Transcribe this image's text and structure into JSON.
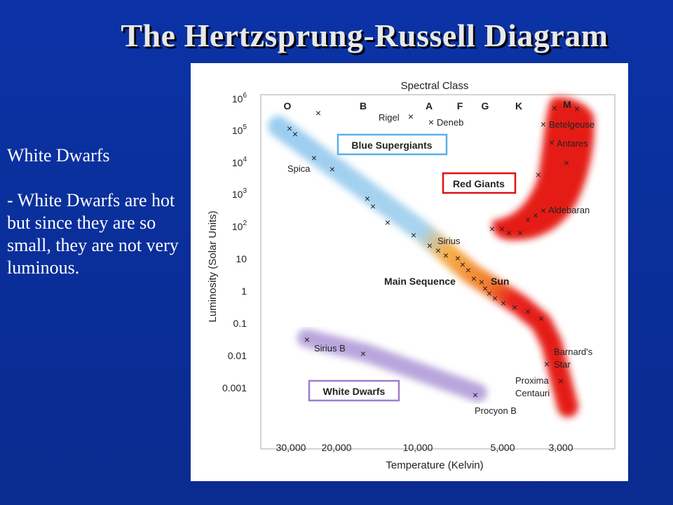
{
  "slide": {
    "title": "The Hertzsprung-Russell Diagram",
    "heading": "White Dwarfs",
    "body": " - White Dwarfs are hot but since they are so small, they are not very luminous."
  },
  "chart_data": {
    "type": "scatter",
    "title": "Spectral Class",
    "xlabel": "Temperature (Kelvin)",
    "ylabel": "Luminosity (Solar Units)",
    "x_axis": "reversed",
    "y_scale": "log",
    "x_ticks": [
      "30,000",
      "20,000",
      "10,000",
      "5,000",
      "3,000"
    ],
    "y_ticks": [
      {
        "label": "10",
        "sup": "6"
      },
      {
        "label": "10",
        "sup": "5"
      },
      {
        "label": "10",
        "sup": "4"
      },
      {
        "label": "10",
        "sup": "3"
      },
      {
        "label": "10",
        "sup": "2"
      },
      {
        "label": "10",
        "sup": ""
      },
      {
        "label": "1",
        "sup": ""
      },
      {
        "label": "0.1",
        "sup": ""
      },
      {
        "label": "0.01",
        "sup": ""
      },
      {
        "label": "0.001",
        "sup": ""
      }
    ],
    "spectral_classes": [
      "O",
      "B",
      "A",
      "F",
      "G",
      "K",
      "M"
    ],
    "regions": [
      "Blue Supergiants",
      "Red Giants",
      "Main Sequence",
      "White Dwarfs"
    ],
    "star_labels": [
      "Rigel",
      "Deneb",
      "Betelgeuse",
      "Antares",
      "Spica",
      "Aldebaran",
      "Sirius",
      "Sun",
      "Sirius B",
      "Barnard's",
      "Star",
      "Proxima",
      "Centauri",
      "Procyon B"
    ],
    "colors": {
      "main_sequence_hot": "#8ec6ee",
      "main_sequence_mid": "#f6a842",
      "main_sequence_cool": "#e8201c",
      "red_giants": "#e8201c",
      "white_dwarfs": "#b39ddb",
      "blue_box": "#5ab0e6",
      "red_box": "#e01010",
      "purple_box": "#9b7fd0"
    }
  }
}
